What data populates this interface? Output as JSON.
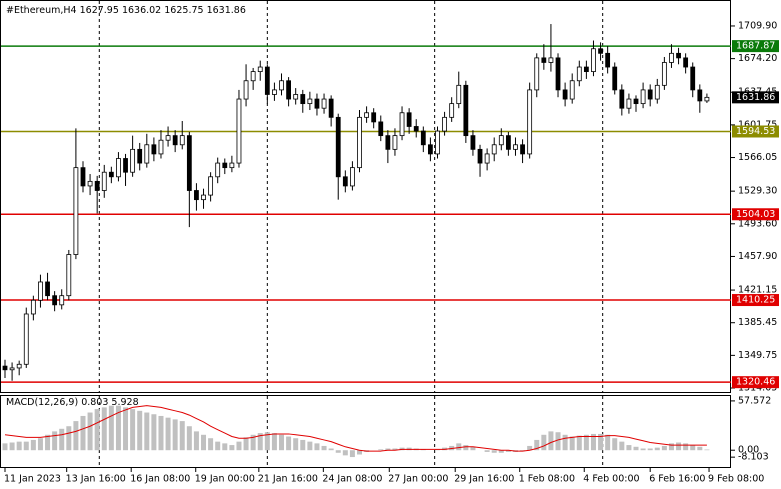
{
  "chart_data": {
    "type": "candlestick",
    "title": "#Ethereum,H4",
    "candles": [
      [
        1338,
        1345,
        1325,
        1334
      ],
      [
        1334,
        1342,
        1322,
        1336
      ],
      [
        1336,
        1344,
        1328,
        1340
      ],
      [
        1340,
        1402,
        1336,
        1395
      ],
      [
        1395,
        1415,
        1388,
        1410
      ],
      [
        1410,
        1438,
        1402,
        1430
      ],
      [
        1430,
        1440,
        1410,
        1415
      ],
      [
        1415,
        1420,
        1398,
        1405
      ],
      [
        1405,
        1422,
        1400,
        1415
      ],
      [
        1415,
        1465,
        1410,
        1460
      ],
      [
        1460,
        1598,
        1455,
        1555
      ],
      [
        1555,
        1562,
        1528,
        1535
      ],
      [
        1535,
        1548,
        1525,
        1540
      ],
      [
        1540,
        1546,
        1505,
        1530
      ],
      [
        1530,
        1558,
        1522,
        1550
      ],
      [
        1550,
        1556,
        1538,
        1545
      ],
      [
        1545,
        1572,
        1540,
        1565
      ],
      [
        1565,
        1570,
        1535,
        1550
      ],
      [
        1550,
        1590,
        1545,
        1575
      ],
      [
        1575,
        1582,
        1552,
        1560
      ],
      [
        1560,
        1592,
        1555,
        1580
      ],
      [
        1580,
        1588,
        1562,
        1570
      ],
      [
        1570,
        1596,
        1565,
        1585
      ],
      [
        1585,
        1600,
        1578,
        1590
      ],
      [
        1590,
        1596,
        1572,
        1580
      ],
      [
        1580,
        1606,
        1575,
        1590
      ],
      [
        1590,
        1594,
        1490,
        1530
      ],
      [
        1530,
        1538,
        1508,
        1520
      ],
      [
        1520,
        1532,
        1510,
        1525
      ],
      [
        1525,
        1550,
        1518,
        1545
      ],
      [
        1545,
        1566,
        1538,
        1560
      ],
      [
        1560,
        1565,
        1548,
        1555
      ],
      [
        1555,
        1568,
        1550,
        1560
      ],
      [
        1560,
        1640,
        1555,
        1630
      ],
      [
        1630,
        1668,
        1622,
        1650
      ],
      [
        1650,
        1664,
        1640,
        1660
      ],
      [
        1660,
        1672,
        1650,
        1665
      ],
      [
        1665,
        1668,
        1625,
        1635
      ],
      [
        1635,
        1648,
        1628,
        1640
      ],
      [
        1640,
        1658,
        1634,
        1650
      ],
      [
        1650,
        1654,
        1622,
        1630
      ],
      [
        1630,
        1642,
        1624,
        1635
      ],
      [
        1635,
        1640,
        1615,
        1625
      ],
      [
        1625,
        1638,
        1618,
        1630
      ],
      [
        1630,
        1636,
        1612,
        1620
      ],
      [
        1620,
        1636,
        1614,
        1630
      ],
      [
        1630,
        1634,
        1600,
        1610
      ],
      [
        1610,
        1614,
        1520,
        1545
      ],
      [
        1545,
        1552,
        1528,
        1535
      ],
      [
        1535,
        1562,
        1530,
        1555
      ],
      [
        1555,
        1618,
        1550,
        1610
      ],
      [
        1610,
        1622,
        1604,
        1615
      ],
      [
        1615,
        1620,
        1598,
        1605
      ],
      [
        1605,
        1612,
        1584,
        1590
      ],
      [
        1590,
        1596,
        1560,
        1575
      ],
      [
        1575,
        1598,
        1568,
        1590
      ],
      [
        1590,
        1622,
        1585,
        1615
      ],
      [
        1615,
        1620,
        1592,
        1600
      ],
      [
        1600,
        1608,
        1588,
        1595
      ],
      [
        1595,
        1600,
        1572,
        1580
      ],
      [
        1580,
        1588,
        1562,
        1570
      ],
      [
        1570,
        1600,
        1565,
        1595
      ],
      [
        1595,
        1616,
        1590,
        1610
      ],
      [
        1610,
        1632,
        1605,
        1625
      ],
      [
        1625,
        1660,
        1620,
        1645
      ],
      [
        1645,
        1650,
        1582,
        1590
      ],
      [
        1590,
        1596,
        1568,
        1575
      ],
      [
        1575,
        1580,
        1545,
        1560
      ],
      [
        1560,
        1576,
        1552,
        1570
      ],
      [
        1570,
        1588,
        1562,
        1580
      ],
      [
        1580,
        1598,
        1574,
        1590
      ],
      [
        1590,
        1594,
        1568,
        1575
      ],
      [
        1575,
        1588,
        1568,
        1580
      ],
      [
        1580,
        1586,
        1560,
        1570
      ],
      [
        1570,
        1648,
        1565,
        1640
      ],
      [
        1640,
        1680,
        1632,
        1675
      ],
      [
        1675,
        1690,
        1662,
        1670
      ],
      [
        1670,
        1712,
        1660,
        1675
      ],
      [
        1675,
        1680,
        1632,
        1640
      ],
      [
        1640,
        1648,
        1622,
        1630
      ],
      [
        1630,
        1658,
        1625,
        1650
      ],
      [
        1650,
        1672,
        1644,
        1665
      ],
      [
        1665,
        1672,
        1652,
        1660
      ],
      [
        1660,
        1694,
        1655,
        1685
      ],
      [
        1685,
        1692,
        1672,
        1680
      ],
      [
        1680,
        1688,
        1658,
        1665
      ],
      [
        1665,
        1670,
        1635,
        1640
      ],
      [
        1640,
        1646,
        1612,
        1620
      ],
      [
        1620,
        1636,
        1614,
        1630
      ],
      [
        1630,
        1634,
        1616,
        1625
      ],
      [
        1625,
        1648,
        1620,
        1640
      ],
      [
        1640,
        1646,
        1622,
        1630
      ],
      [
        1630,
        1652,
        1625,
        1645
      ],
      [
        1645,
        1676,
        1640,
        1670
      ],
      [
        1670,
        1690,
        1664,
        1680
      ],
      [
        1680,
        1686,
        1668,
        1675
      ],
      [
        1675,
        1680,
        1658,
        1665
      ],
      [
        1665,
        1670,
        1632,
        1640
      ],
      [
        1640,
        1646,
        1615,
        1627.95
      ],
      [
        1627.95,
        1636.02,
        1625.75,
        1631.86
      ]
    ],
    "ylim": [
      1309.7,
      1737.2
    ],
    "yticks": [
      {
        "value": 1709.9,
        "label": "1709.90"
      },
      {
        "value": 1674.2,
        "label": "1674.20"
      },
      1637.45,
      1601.75,
      1566.05,
      {
        "value": 1529.3,
        "label": "1529.30"
      },
      {
        "value": 1493.6,
        "label": "1493.60"
      },
      {
        "value": 1457.9,
        "label": "1457.90"
      },
      1421.15,
      1385.45,
      1349.75,
      1314.05
    ],
    "levels": [
      {
        "value": 1687.87,
        "color": "#0a7a0a"
      },
      {
        "value": 1594.53,
        "color": "#8c8c00"
      },
      {
        "value": 1504.03,
        "color": "#e00000"
      },
      {
        "value": 1410.25,
        "color": "#e00000"
      },
      {
        "value": 1320.46,
        "color": "#e00000"
      }
    ],
    "xticks": [
      {
        "value": 0,
        "label": "11 Jan 2023"
      },
      {
        "value": 8.7,
        "label": "13 Jan 16:00"
      },
      {
        "value": 17.8,
        "label": "16 Jan 08:00"
      },
      {
        "value": 26.9,
        "label": "19 Jan 00:00"
      },
      {
        "value": 35.8,
        "label": "21 Jan 16:00"
      },
      {
        "value": 44.9,
        "label": "24 Jan 08:00"
      },
      {
        "value": 54.2,
        "label": "27 Jan 00:00"
      },
      {
        "value": 63.5,
        "label": "29 Jan 16:00"
      },
      {
        "value": 72.6,
        "label": "1 Feb 08:00"
      },
      {
        "value": 81.7,
        "label": "4 Feb 00:00"
      },
      {
        "value": 91,
        "label": "6 Feb 16:00"
      },
      {
        "value": 99.3,
        "label": "9 Feb 08:00"
      }
    ],
    "xgrid": [
      13.3,
      37,
      60.6,
      84.3
    ],
    "macd": {
      "label": "MACD(12,26,9)",
      "hist_color": "#c0c0c0",
      "signal_color": "#e00000",
      "histogram": [
        8,
        9,
        10,
        10,
        12,
        14,
        18,
        22,
        25,
        28,
        34,
        40,
        44,
        48,
        50,
        52,
        52,
        50,
        48,
        46,
        44,
        42,
        40,
        38,
        36,
        34,
        28,
        22,
        18,
        14,
        10,
        8,
        6,
        10,
        15,
        18,
        20,
        21,
        20,
        18,
        16,
        14,
        12,
        10,
        8,
        5,
        2,
        -3,
        -6,
        -8,
        -5,
        -2,
        0,
        1,
        2,
        2,
        3,
        3,
        2,
        1,
        0,
        1,
        3,
        5,
        8,
        6,
        4,
        0,
        -2,
        -3,
        -3,
        -2,
        -2,
        -1,
        5,
        12,
        18,
        22,
        21,
        18,
        16,
        17,
        18,
        19,
        19,
        18,
        14,
        10,
        6,
        4,
        2,
        2,
        3,
        5,
        8,
        9,
        8,
        6,
        4,
        0.803
      ],
      "signal": [
        18,
        17,
        16,
        15,
        15,
        15,
        16,
        17,
        18,
        20,
        22,
        25,
        28,
        32,
        36,
        40,
        44,
        47,
        50,
        51,
        52,
        51,
        50,
        48,
        46,
        44,
        41,
        37,
        33,
        28,
        24,
        20,
        16,
        14,
        14,
        15,
        17,
        18,
        19,
        19,
        19,
        18,
        17,
        16,
        14,
        12,
        10,
        7,
        4,
        2,
        0,
        -1,
        -1,
        -1,
        0,
        0,
        1,
        1,
        1,
        1,
        1,
        1,
        1,
        2,
        3,
        4,
        4,
        3,
        2,
        1,
        0,
        0,
        -1,
        -1,
        0,
        2,
        5,
        9,
        12,
        14,
        15,
        16,
        16,
        16,
        16,
        17,
        17,
        16,
        15,
        13,
        11,
        9,
        8,
        7,
        6,
        6,
        6,
        6,
        6,
        5.928
      ],
      "ylim": [
        -19.6,
        63.3
      ],
      "yticks": [
        57.572,
        {
          "value": 0,
          "label": "0.00"
        },
        -8.103
      ]
    }
  }
}
